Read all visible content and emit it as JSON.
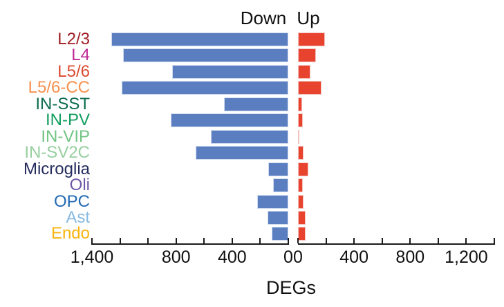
{
  "chart_data": {
    "type": "bar",
    "orientation": "horizontal-diverging",
    "xlabel": "DEGs",
    "panel_labels": {
      "down": "Down",
      "up": "Up"
    },
    "categories": [
      "L2/3",
      "L4",
      "L5/6",
      "L5/6-CC",
      "IN-SST",
      "IN-PV",
      "IN-VIP",
      "IN-SV2C",
      "Microglia",
      "Oli",
      "OPC",
      "Ast",
      "Endo"
    ],
    "category_colors": [
      "#A01D24",
      "#BF2A94",
      "#DC4A32",
      "#F6914E",
      "#0B6B4F",
      "#129E60",
      "#72C584",
      "#97CFA0",
      "#252C5E",
      "#6E57A6",
      "#2269B3",
      "#87BAE2",
      "#F8B410"
    ],
    "series": [
      {
        "name": "Down",
        "color": "#5B7EC1",
        "values": [
          1260,
          1180,
          830,
          1190,
          460,
          840,
          550,
          660,
          145,
          110,
          220,
          150,
          120
        ]
      },
      {
        "name": "Up",
        "color": "#E8432F",
        "values": [
          190,
          130,
          90,
          170,
          30,
          35,
          10,
          40,
          75,
          35,
          40,
          55,
          55
        ]
      }
    ],
    "x_axis": {
      "left": {
        "min": 0,
        "max": 1400,
        "tick_step": 200,
        "direction": "leftward",
        "labeled_ticks": [
          {
            "value": 1400,
            "label": "1,400"
          },
          {
            "value": 800,
            "label": "800"
          },
          {
            "value": 400,
            "label": "400"
          },
          {
            "value": 0,
            "label": "0"
          }
        ]
      },
      "right": {
        "min": 0,
        "max": 1400,
        "tick_step": 200,
        "direction": "rightward",
        "labeled_ticks": [
          {
            "value": 0,
            "label": "0"
          },
          {
            "value": 400,
            "label": "400"
          },
          {
            "value": 800,
            "label": "800"
          },
          {
            "value": 1200,
            "label": "1,200"
          }
        ]
      }
    },
    "grid": "off",
    "legend": "none"
  }
}
